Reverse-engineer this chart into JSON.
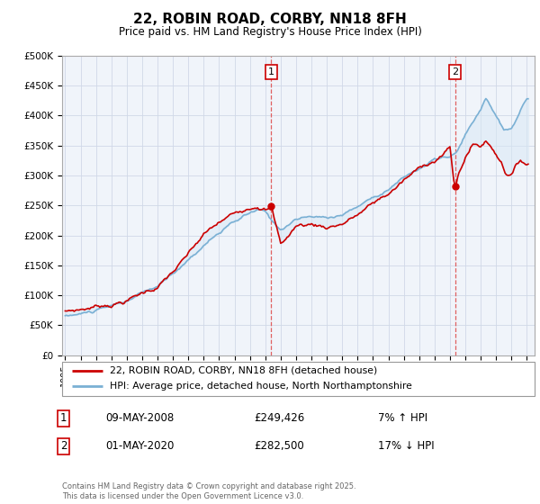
{
  "title": "22, ROBIN ROAD, CORBY, NN18 8FH",
  "subtitle": "Price paid vs. HM Land Registry's House Price Index (HPI)",
  "ylabel_ticks": [
    "£0",
    "£50K",
    "£100K",
    "£150K",
    "£200K",
    "£250K",
    "£300K",
    "£350K",
    "£400K",
    "£450K",
    "£500K"
  ],
  "ytick_values": [
    0,
    50000,
    100000,
    150000,
    200000,
    250000,
    300000,
    350000,
    400000,
    450000,
    500000
  ],
  "ylim": [
    0,
    500000
  ],
  "xlim_start": 1994.8,
  "xlim_end": 2025.5,
  "legend_line1": "22, ROBIN ROAD, CORBY, NN18 8FH (detached house)",
  "legend_line2": "HPI: Average price, detached house, North Northamptonshire",
  "annotation1_date": "09-MAY-2008",
  "annotation1_price": "£249,426",
  "annotation1_hpi": "7% ↑ HPI",
  "annotation2_date": "01-MAY-2020",
  "annotation2_price": "£282,500",
  "annotation2_hpi": "17% ↓ HPI",
  "footer": "Contains HM Land Registry data © Crown copyright and database right 2025.\nThis data is licensed under the Open Government Licence v3.0.",
  "line1_color": "#cc0000",
  "line2_color": "#7ab0d4",
  "fill_color": "#d8e8f5",
  "marker_color": "#cc0000",
  "vline_color": "#e06060",
  "background_color": "#ffffff",
  "plot_bg_color": "#f0f4fa",
  "grid_color": "#d0d8e8"
}
